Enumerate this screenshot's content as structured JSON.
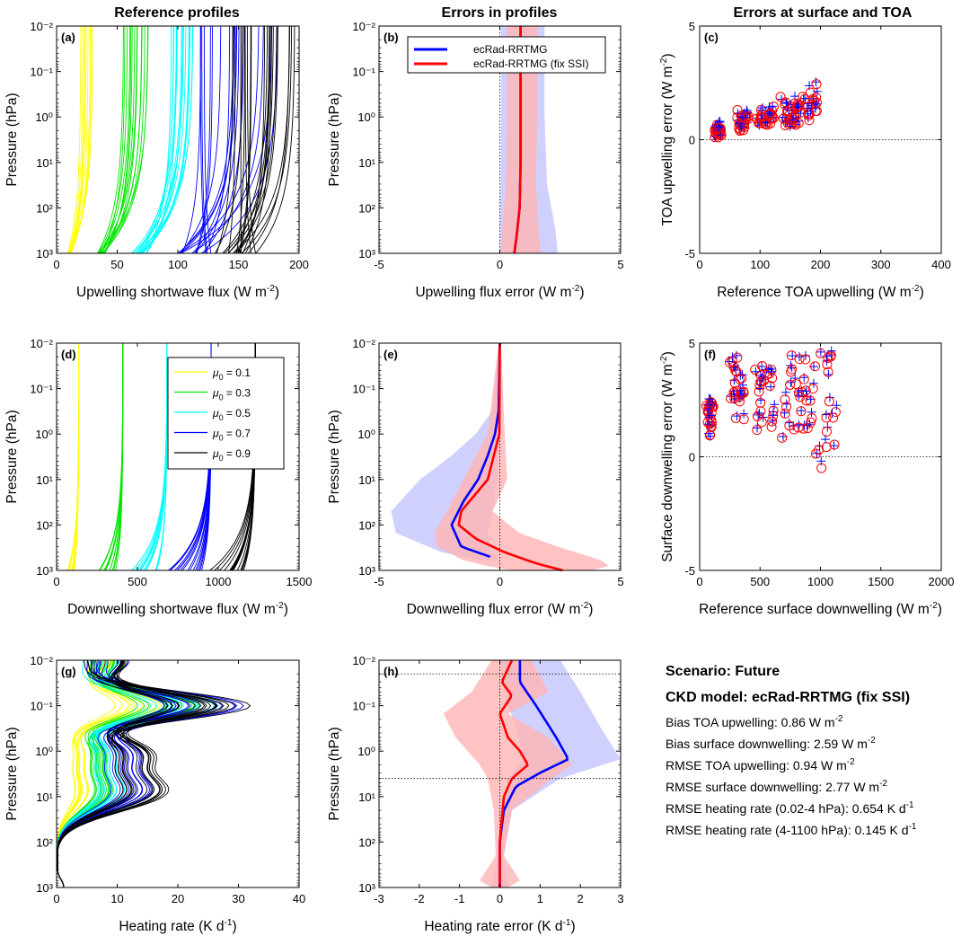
{
  "column_titles": [
    "Reference profiles",
    "Errors in profiles",
    "Errors at surface and TOA"
  ],
  "colors": {
    "mu_0.1": "#ffff00",
    "mu_0.3": "#00e600",
    "mu_0.5": "#00ffff",
    "mu_0.7": "#0000ff",
    "mu_0.9": "#000000",
    "ecrad": "#0000ff",
    "ecrad_fix": "#ff0000",
    "ecrad_shade": "#c8c8ff",
    "ecrad_fix_shade": "#ffb4b4"
  },
  "legend_mu": {
    "prefix": "μ",
    "subscript": "0",
    "entries": [
      {
        "value": " = 0.1",
        "color": "#ffff00"
      },
      {
        "value": " = 0.3",
        "color": "#00e600"
      },
      {
        "value": " = 0.5",
        "color": "#00ffff"
      },
      {
        "value": " = 0.7",
        "color": "#0000ff"
      },
      {
        "value": " = 0.9",
        "color": "#000000"
      }
    ]
  },
  "legend_models": [
    "ecRad-RRTMG",
    "ecRad-RRTMG (fix SSI)"
  ],
  "info": {
    "scenario": "Scenario: Future",
    "ckd": "CKD model: ecRad-RRTMG (fix SSI)",
    "lines": [
      {
        "pre": "Bias TOA upwelling: 0.86 W m",
        "sup": "-2",
        "post": ""
      },
      {
        "pre": "Bias surface downwelling: 2.59 W m",
        "sup": "-2",
        "post": ""
      },
      {
        "pre": "RMSE TOA upwelling: 0.94 W m",
        "sup": "-2",
        "post": ""
      },
      {
        "pre": "RMSE surface downwelling: 2.77 W m",
        "sup": "-2",
        "post": ""
      },
      {
        "pre": "RMSE heating rate (0.02-4 hPa):  0.654 K d",
        "sup": "-1",
        "post": ""
      },
      {
        "pre": "RMSE heating rate (4-1100 hPa):  0.145 K d",
        "sup": "-1",
        "post": ""
      }
    ]
  },
  "chart_data": [
    {
      "id": "a",
      "letter": "(a)",
      "type": "line",
      "xlabel": {
        "pre": "Upwelling shortwave flux (W m",
        "sup": "-2",
        "post": ")"
      },
      "ylabel": "Pressure (hPa)",
      "xlim": [
        0,
        200
      ],
      "xticks": [
        0,
        50,
        100,
        150,
        200
      ],
      "ylog": true,
      "ylim": [
        0.01,
        1000
      ],
      "yticks": [
        "10⁻²",
        "10⁻¹",
        "10⁰",
        "10¹",
        "10²",
        "10³"
      ],
      "series": [
        {
          "color": "#ffff00",
          "toa_range": [
            20,
            32
          ],
          "sfc_range": [
            9,
            12
          ],
          "n": 12
        },
        {
          "color": "#00e600",
          "toa_range": [
            55,
            78
          ],
          "sfc_range": [
            33,
            40
          ],
          "n": 14
        },
        {
          "color": "#00ffff",
          "toa_range": [
            90,
            113
          ],
          "sfc_range": [
            61,
            75
          ],
          "n": 16
        },
        {
          "color": "#0000ff",
          "toa_range": [
            115,
            185
          ],
          "sfc_range": [
            100,
            130
          ],
          "n": 18
        },
        {
          "color": "#000000",
          "toa_range": [
            145,
            197
          ],
          "sfc_range": [
            130,
            165
          ],
          "n": 22
        }
      ]
    },
    {
      "id": "b",
      "letter": "(b)",
      "type": "line",
      "xlabel": {
        "pre": "Upwelling flux error (W m",
        "sup": "-2",
        "post": ")"
      },
      "ylabel": "Pressure (hPa)",
      "xlim": [
        -5,
        5
      ],
      "xticks": [
        -5,
        0,
        5
      ],
      "ylog": true,
      "ylim": [
        0.01,
        1000
      ],
      "yticks": [
        "10⁻²",
        "10⁻¹",
        "10⁰",
        "10¹",
        "10²",
        "10³"
      ],
      "series": [
        {
          "name": "ecRad-RRTMG",
          "mean": [
            [
              0.01,
              0.86
            ],
            [
              1,
              0.86
            ],
            [
              10,
              0.86
            ],
            [
              100,
              0.82
            ],
            [
              400,
              0.7
            ],
            [
              1000,
              0.6
            ]
          ],
          "band": [
            [
              0.01,
              0.05,
              1.85
            ],
            [
              1,
              0.05,
              1.85
            ],
            [
              30,
              0.03,
              1.95
            ],
            [
              300,
              0.0,
              2.3
            ],
            [
              1000,
              0.0,
              2.4
            ]
          ]
        },
        {
          "name": "ecRad-RRTMG (fix SSI)",
          "mean": [
            [
              0.01,
              0.86
            ],
            [
              1,
              0.86
            ],
            [
              10,
              0.86
            ],
            [
              100,
              0.82
            ],
            [
              400,
              0.7
            ],
            [
              1000,
              0.6
            ]
          ],
          "band": [
            [
              0.01,
              0.3,
              1.55
            ],
            [
              1,
              0.3,
              1.55
            ],
            [
              30,
              0.25,
              1.5
            ],
            [
              300,
              0.1,
              1.6
            ],
            [
              1000,
              0.05,
              1.7
            ]
          ]
        }
      ]
    },
    {
      "id": "c",
      "letter": "(c)",
      "type": "scatter",
      "xlabel": {
        "pre": "Reference TOA upwelling (W m",
        "sup": "-2",
        "post": ")"
      },
      "ylabel": {
        "pre": "TOA upwelling error (W m",
        "sup": "-2",
        "post": ")"
      },
      "xlim": [
        0,
        400
      ],
      "xticks": [
        0,
        100,
        200,
        300,
        400
      ],
      "ylim": [
        -5,
        5
      ],
      "yticks": [
        -5,
        0,
        5
      ],
      "clusters": [
        {
          "x": [
            25,
            35
          ],
          "y": [
            0.15,
            0.7
          ]
        },
        {
          "x": [
            62,
            80
          ],
          "y": [
            0.4,
            1.3
          ]
        },
        {
          "x": [
            95,
            125
          ],
          "y": [
            0.4,
            1.6
          ]
        },
        {
          "x": [
            135,
            165
          ],
          "y": [
            0.4,
            1.9
          ]
        },
        {
          "x": [
            160,
            195
          ],
          "y": [
            0.5,
            2.6
          ]
        }
      ]
    },
    {
      "id": "d",
      "letter": "(d)",
      "type": "line",
      "xlabel": {
        "pre": "Downwelling shortwave flux (W m",
        "sup": "-2",
        "post": ")"
      },
      "ylabel": "Pressure (hPa)",
      "xlim": [
        0,
        1500
      ],
      "xticks": [
        0,
        500,
        1000,
        1500
      ],
      "ylog": true,
      "ylim": [
        0.01,
        1000
      ],
      "yticks": [
        "10⁻²",
        "10⁻¹",
        "10⁰",
        "10¹",
        "10²",
        "10³"
      ],
      "series": [
        {
          "color": "#ffff00",
          "toa": 137,
          "sfc_range": [
            60,
            110
          ],
          "n": 10
        },
        {
          "color": "#00e600",
          "toa": 410,
          "sfc_range": [
            250,
            370
          ],
          "n": 12
        },
        {
          "color": "#00ffff",
          "toa": 683,
          "sfc_range": [
            460,
            620
          ],
          "n": 14
        },
        {
          "color": "#0000ff",
          "toa": 956,
          "sfc_range": [
            680,
            900
          ],
          "n": 16
        },
        {
          "color": "#000000",
          "toa": 1229,
          "sfc_range": [
            900,
            1170
          ],
          "n": 18
        }
      ]
    },
    {
      "id": "e",
      "letter": "(e)",
      "type": "line",
      "xlabel": {
        "pre": "Downwelling flux error (W m",
        "sup": "-2",
        "post": ")"
      },
      "ylabel": "Pressure (hPa)",
      "xlim": [
        -5,
        5
      ],
      "xticks": [
        -5,
        0,
        5
      ],
      "ylog": true,
      "ylim": [
        0.01,
        1000
      ],
      "yticks": [
        "10⁻²",
        "10⁻¹",
        "10⁰",
        "10¹",
        "10²",
        "10³"
      ],
      "series": [
        {
          "name": "ecRad-RRTMG",
          "mean": [
            [
              0.01,
              0.0
            ],
            [
              0.3,
              -0.05
            ],
            [
              1,
              -0.2
            ],
            [
              3,
              -0.5
            ],
            [
              10,
              -0.9
            ],
            [
              30,
              -1.5
            ],
            [
              100,
              -2.0
            ],
            [
              300,
              -1.6
            ],
            [
              500,
              -0.4
            ]
          ],
          "band": [
            [
              0.01,
              -0.05,
              0.05
            ],
            [
              0.3,
              -0.3,
              0.05
            ],
            [
              1,
              -1.0,
              0.0
            ],
            [
              3,
              -2.0,
              -0.05
            ],
            [
              10,
              -3.3,
              -0.1
            ],
            [
              50,
              -4.5,
              -0.3
            ],
            [
              150,
              -4.3,
              -0.5
            ],
            [
              400,
              -2.4,
              -0.3
            ],
            [
              600,
              -0.8,
              0.0
            ]
          ]
        },
        {
          "name": "ecRad-RRTMG (fix SSI)",
          "mean": [
            [
              0.01,
              0.0
            ],
            [
              1,
              -0.02
            ],
            [
              10,
              -0.5
            ],
            [
              50,
              -1.6
            ],
            [
              100,
              -1.7
            ],
            [
              200,
              -1.0
            ],
            [
              400,
              0.2
            ],
            [
              700,
              1.5
            ],
            [
              1000,
              2.6
            ]
          ],
          "band": [
            [
              0.01,
              -0.05,
              0.05
            ],
            [
              1,
              -0.5,
              0.2
            ],
            [
              10,
              -1.5,
              0.3
            ],
            [
              50,
              -2.2,
              -0.3
            ],
            [
              150,
              -2.7,
              0.8
            ],
            [
              300,
              -2.6,
              2.4
            ],
            [
              600,
              -1.5,
              4.2
            ],
            [
              800,
              -0.5,
              4.5
            ],
            [
              1000,
              0.5,
              3.8
            ]
          ]
        }
      ]
    },
    {
      "id": "f",
      "letter": "(f)",
      "type": "scatter",
      "xlabel": {
        "pre": "Reference surface downwelling (W m",
        "sup": "-2",
        "post": ")"
      },
      "ylabel": {
        "pre": "Surface downwelling error (W m",
        "sup": "-2",
        "post": ")"
      },
      "xlim": [
        0,
        2000
      ],
      "xticks": [
        0,
        500,
        1000,
        1500,
        2000
      ],
      "ylim": [
        -5,
        5
      ],
      "yticks": [
        -5,
        0,
        5
      ],
      "clusters": [
        {
          "x": [
            60,
            110
          ],
          "y": [
            0.6,
            2.5
          ]
        },
        {
          "x": [
            240,
            370
          ],
          "y": [
            1.0,
            4.5
          ]
        },
        {
          "x": [
            460,
            620
          ],
          "y": [
            0.2,
            4.6
          ]
        },
        {
          "x": [
            660,
            900
          ],
          "y": [
            -0.2,
            4.8
          ]
        },
        {
          "x": [
            880,
            1150
          ],
          "y": [
            -1.6,
            4.8
          ]
        }
      ]
    },
    {
      "id": "g",
      "letter": "(g)",
      "type": "line",
      "xlabel": {
        "pre": "Heating rate (K d",
        "sup": "-1",
        "post": ")"
      },
      "ylabel": "Pressure (hPa)",
      "xlim": [
        0,
        40
      ],
      "xticks": [
        0,
        10,
        20,
        30,
        40
      ],
      "ylog": true,
      "ylim": [
        0.01,
        1000
      ],
      "yticks": [
        "10⁻²",
        "10⁻¹",
        "10⁰",
        "10¹",
        "10²",
        "10³"
      ],
      "series": [
        {
          "color": "#ffff00",
          "peak": 20,
          "mid": 4,
          "n": 10
        },
        {
          "color": "#00e600",
          "peak": 28,
          "mid": 7,
          "n": 12
        },
        {
          "color": "#00ffff",
          "peak": 32,
          "mid": 9,
          "n": 12
        },
        {
          "color": "#0000ff",
          "peak": 36,
          "mid": 12,
          "n": 12
        },
        {
          "color": "#000000",
          "peak": 38,
          "mid": 14,
          "n": 16
        }
      ]
    },
    {
      "id": "h",
      "letter": "(h)",
      "type": "line",
      "xlabel": {
        "pre": "Heating rate error (K d",
        "sup": "-1",
        "post": ")"
      },
      "ylabel": "Pressure (hPa)",
      "xlim": [
        -3,
        3
      ],
      "xticks": [
        -3,
        -2,
        -1,
        0,
        1,
        2,
        3
      ],
      "ylog": true,
      "ylim": [
        0.01,
        1000
      ],
      "yticks": [
        "10⁻²",
        "10⁻¹",
        "10⁰",
        "10¹",
        "10²",
        "10³"
      ],
      "hlines": [
        0.02,
        4
      ],
      "series": [
        {
          "name": "ecRad-RRTMG",
          "mean": [
            [
              0.01,
              0.5
            ],
            [
              0.03,
              0.5
            ],
            [
              0.1,
              0.9
            ],
            [
              0.5,
              1.4
            ],
            [
              1.5,
              1.7
            ],
            [
              3,
              1.0
            ],
            [
              6,
              0.4
            ],
            [
              20,
              0.1
            ],
            [
              100,
              0.0
            ],
            [
              1000,
              0.0
            ]
          ],
          "band": [
            [
              0.01,
              0.0,
              1.5
            ],
            [
              0.05,
              0.1,
              2.0
            ],
            [
              0.3,
              0.4,
              2.5
            ],
            [
              1.5,
              0.6,
              3.0
            ],
            [
              4,
              0.2,
              1.5
            ],
            [
              20,
              0.0,
              0.3
            ],
            [
              200,
              -0.05,
              0.1
            ],
            [
              1000,
              -0.2,
              0.2
            ]
          ]
        },
        {
          "name": "ecRad-RRTMG (fix SSI)",
          "mean": [
            [
              0.01,
              0.3
            ],
            [
              0.03,
              0.05
            ],
            [
              0.06,
              0.3
            ],
            [
              0.15,
              0.0
            ],
            [
              0.5,
              0.2
            ],
            [
              1,
              0.5
            ],
            [
              2,
              0.7
            ],
            [
              4,
              0.3
            ],
            [
              10,
              0.1
            ],
            [
              100,
              0.0
            ],
            [
              1000,
              0.0
            ]
          ],
          "band": [
            [
              0.01,
              -0.2,
              0.8
            ],
            [
              0.05,
              -0.7,
              1.2
            ],
            [
              0.15,
              -1.4,
              0.2
            ],
            [
              0.5,
              -1.1,
              1.2
            ],
            [
              2,
              -0.5,
              1.8
            ],
            [
              4,
              -0.3,
              1.3
            ],
            [
              20,
              -0.15,
              0.3
            ],
            [
              200,
              -0.1,
              0.1
            ],
            [
              700,
              -0.5,
              0.5
            ],
            [
              1000,
              -0.2,
              0.2
            ]
          ]
        }
      ]
    }
  ]
}
